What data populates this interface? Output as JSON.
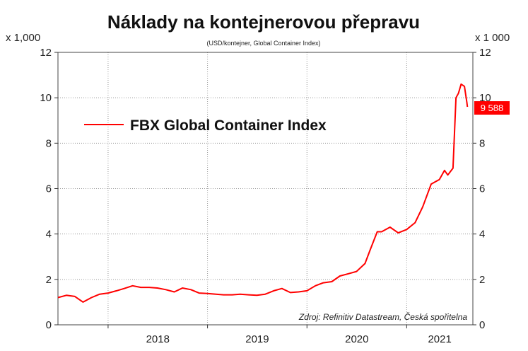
{
  "chart_data": {
    "type": "line",
    "title": "Náklady na kontejnerovou přepravu",
    "subtitle": "(USD/kontejner, Global Container Index)",
    "y_unit_left": "x 1,000",
    "y_unit_right": "x 1 000",
    "ylim": [
      0,
      12
    ],
    "y_ticks": [
      0,
      2,
      4,
      6,
      8,
      10,
      12
    ],
    "xlim": [
      "2017-07-01",
      "2021-09-01"
    ],
    "x_tick_labels": [
      "2018",
      "2019",
      "2020",
      "2021"
    ],
    "grid": true,
    "legend_position": "top-left",
    "source_note": "Zdroj: Refinitiv Datastream, Česká spořitelna",
    "last_value_label": "9 588",
    "colors": {
      "series": "#ff0000",
      "label_bg": "#ff0000",
      "grid": "#9a9a9a"
    },
    "series": [
      {
        "name": "FBX Global Container Index",
        "x": [
          "2017-07-01",
          "2017-08-01",
          "2017-09-01",
          "2017-10-01",
          "2017-11-01",
          "2017-12-01",
          "2018-01-01",
          "2018-02-01",
          "2018-03-01",
          "2018-04-01",
          "2018-05-01",
          "2018-06-01",
          "2018-07-01",
          "2018-08-01",
          "2018-09-01",
          "2018-10-01",
          "2018-11-01",
          "2018-12-01",
          "2019-01-01",
          "2019-02-01",
          "2019-03-01",
          "2019-04-01",
          "2019-05-01",
          "2019-06-01",
          "2019-07-01",
          "2019-08-01",
          "2019-09-01",
          "2019-10-01",
          "2019-11-01",
          "2019-12-01",
          "2020-01-01",
          "2020-02-01",
          "2020-03-01",
          "2020-04-01",
          "2020-05-01",
          "2020-06-01",
          "2020-07-01",
          "2020-08-01",
          "2020-08-20",
          "2020-09-15",
          "2020-10-01",
          "2020-11-01",
          "2020-12-01",
          "2021-01-01",
          "2021-02-01",
          "2021-03-01",
          "2021-04-01",
          "2021-05-01",
          "2021-05-20",
          "2021-06-01",
          "2021-06-20",
          "2021-07-01",
          "2021-07-10",
          "2021-07-20",
          "2021-08-01",
          "2021-08-10",
          "2021-08-12"
        ],
        "values": [
          1.2,
          1.3,
          1.25,
          1.0,
          1.2,
          1.35,
          1.4,
          1.5,
          1.6,
          1.72,
          1.65,
          1.65,
          1.62,
          1.55,
          1.45,
          1.62,
          1.55,
          1.4,
          1.38,
          1.35,
          1.32,
          1.32,
          1.35,
          1.32,
          1.3,
          1.35,
          1.5,
          1.6,
          1.42,
          1.45,
          1.5,
          1.72,
          1.85,
          1.9,
          2.15,
          2.25,
          2.35,
          2.7,
          3.3,
          4.1,
          4.1,
          4.3,
          4.05,
          4.2,
          4.5,
          5.2,
          6.2,
          6.4,
          6.8,
          6.6,
          6.9,
          10.0,
          10.2,
          10.6,
          10.5,
          9.8,
          9.6
        ]
      }
    ]
  }
}
